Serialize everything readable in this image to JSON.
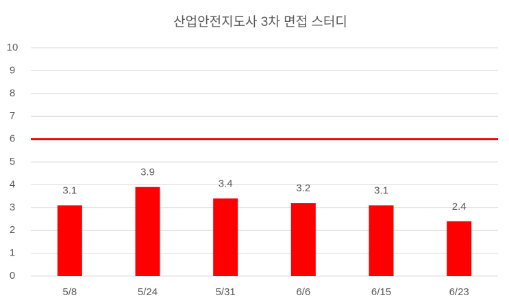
{
  "chart_data": {
    "type": "bar",
    "title": "산업안전지도사 3차 면접 스터디",
    "categories": [
      "5/8",
      "5/24",
      "5/31",
      "6/6",
      "6/15",
      "6/23"
    ],
    "values": [
      3.1,
      3.9,
      3.4,
      3.2,
      3.1,
      2.4
    ],
    "color": "#ff0000",
    "reference_line": 6,
    "reference_color": "#ff0000",
    "ylim": [
      0,
      10
    ],
    "yticks": [
      0,
      1,
      2,
      3,
      4,
      5,
      6,
      7,
      8,
      9,
      10
    ],
    "grid": true,
    "data_labels": true
  }
}
